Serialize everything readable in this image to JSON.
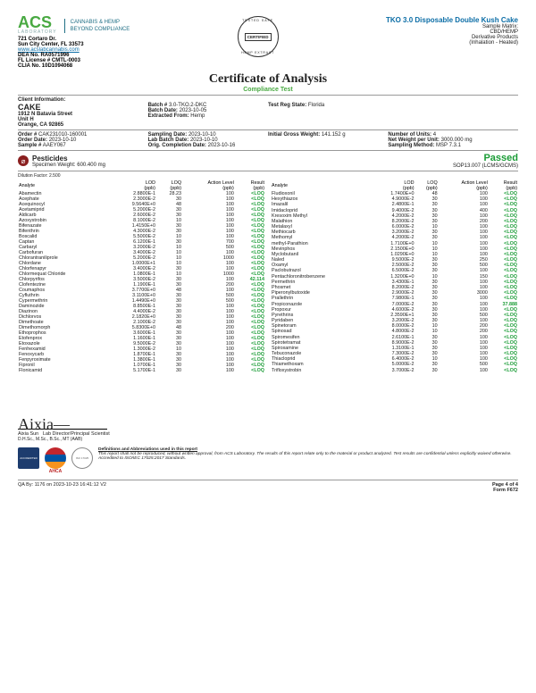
{
  "lab": {
    "name_main": "ACS",
    "name_sub": "LABORATORY",
    "tagline1": "CANNABIS & HEMP",
    "tagline2": "BEYOND COMPLIANCE",
    "addr1": "721 Cortaro Dr.",
    "addr2": "Sun City Center, FL 33573",
    "url": "www.acslabcannabis.com",
    "dea": "DEA No. RA0571996",
    "fl_lic": "FL License # CMTL-0003",
    "clia": "CLIA No. 10D1094068"
  },
  "badge": {
    "label": "CERTIFIED"
  },
  "product": {
    "title": "TKO 3.0 Disposable Double Kush Cake",
    "matrix_lbl": "Sample Matrix:",
    "matrix": "CBD/HEMP",
    "deriv1": "Derivative Products",
    "deriv2": "(Inhalation - Heated)"
  },
  "coa": {
    "title": "Certificate of Analysis",
    "sub": "Compliance Test"
  },
  "client": {
    "heading": "Client Information:",
    "name": "CAKE",
    "addr1": "1912 N Batavia Street",
    "addr2": "Unit H",
    "addr3": "Orange, CA 92865",
    "batch_no_lbl": "Batch #",
    "batch_no": "3.0-TKO.2-DKC",
    "batch_date_lbl": "Batch Date:",
    "batch_date": "2023-10-05",
    "extracted_lbl": "Extracted From:",
    "extracted": "Hemp",
    "testreg_lbl": "Test Reg State:",
    "testreg": "Florida",
    "order_no_lbl": "Order #",
    "order_no": "CAK231010-160001",
    "order_date_lbl": "Order Date:",
    "order_date": "2023-10-10",
    "sample_no_lbl": "Sample #",
    "sample_no": "AAEY067",
    "samp_date_lbl": "Sampling Date:",
    "samp_date": "2023-10-10",
    "lab_batch_lbl": "Lab Batch Date:",
    "lab_batch": "2023-10-10",
    "comp_date_lbl": "Orig. Completion Date:",
    "comp_date": "2023-10-16",
    "gross_lbl": "Initial Gross Weight:",
    "gross": "141.152 g",
    "units_lbl": "Number of Units:",
    "units": "4",
    "netwt_lbl": "Net Weight per Unit:",
    "netwt": "3000.000 mg",
    "method_lbl": "Sampling Method:",
    "method": "MSP 7.3.1"
  },
  "section": {
    "title": "Pesticides",
    "spec": "Specimen Weight: 600.400 mg",
    "result": "Passed",
    "sop": "SOP13.007 (LCMS/GCMS)",
    "dilution": "Dilution Factor: 2.500"
  },
  "headers": {
    "analyte": "Analyte",
    "lod": "LOD",
    "lod_u": "(ppb)",
    "loq": "LOQ",
    "loq_u": "(ppb)",
    "al": "Action Level",
    "al_u": "(ppb)",
    "res": "Result",
    "res_u": "(ppb)"
  },
  "left_rows": [
    [
      "Abamectin",
      "2.8800E-1",
      "28.23",
      "100",
      "<LOQ"
    ],
    [
      "Acephate",
      "2.3000E-2",
      "30",
      "100",
      "<LOQ"
    ],
    [
      "Acequinocyl",
      "9.5640E+0",
      "48",
      "100",
      "<LOQ"
    ],
    [
      "Acetamiprid",
      "5.2000E-2",
      "30",
      "100",
      "<LOQ"
    ],
    [
      "Aldicarb",
      "2.6000E-2",
      "30",
      "100",
      "<LOQ"
    ],
    [
      "Azoxystrobin",
      "8.1000E-2",
      "10",
      "100",
      "<LOQ"
    ],
    [
      "Bifenazate",
      "1.4150E+0",
      "30",
      "100",
      "<LOQ"
    ],
    [
      "Bifenthrin",
      "4.3000E-2",
      "30",
      "100",
      "<LOQ"
    ],
    [
      "Boscalid",
      "5.5000E-2",
      "10",
      "100",
      "<LOQ"
    ],
    [
      "Captan",
      "6.1200E-1",
      "30",
      "700",
      "<LOQ"
    ],
    [
      "Carbaryl",
      "3.2000E-2",
      "10",
      "500",
      "<LOQ"
    ],
    [
      "Carbofuran",
      "3.4000E-2",
      "10",
      "100",
      "<LOQ"
    ],
    [
      "Chlorantraniliprole",
      "5.2000E-2",
      "10",
      "1000",
      "<LOQ"
    ],
    [
      "Chlordane",
      "1.0000E+1",
      "10",
      "100",
      "<LOQ"
    ],
    [
      "Chlorfenapyr",
      "3.4000E-2",
      "30",
      "100",
      "<LOQ"
    ],
    [
      "Chlormequat Chloride",
      "1.0800E-1",
      "10",
      "1000",
      "<LOQ"
    ],
    [
      "Chlorpyrifos",
      "3.5000E-2",
      "30",
      "100",
      "42.114"
    ],
    [
      "Clofentezine",
      "1.1900E-1",
      "30",
      "200",
      "<LOQ"
    ],
    [
      "Coumaphos",
      "3.7700E+0",
      "48",
      "100",
      "<LOQ"
    ],
    [
      "Cyfluthrin",
      "3.1100E+0",
      "30",
      "500",
      "<LOQ"
    ],
    [
      "Cypermethrin",
      "1.4490E+0",
      "30",
      "500",
      "<LOQ"
    ],
    [
      "Daminozide",
      "8.8500E-1",
      "30",
      "100",
      "<LOQ"
    ],
    [
      "Diazinon",
      "4.4000E-2",
      "30",
      "100",
      "<LOQ"
    ],
    [
      "Dichlorvos",
      "2.1820E+0",
      "30",
      "100",
      "<LOQ"
    ],
    [
      "Dimethoate",
      "2.1000E-2",
      "30",
      "100",
      "<LOQ"
    ],
    [
      "Dimethomorph",
      "5.8300E+0",
      "48",
      "200",
      "<LOQ"
    ],
    [
      "Ethoprophos",
      "3.6000E-1",
      "30",
      "100",
      "<LOQ"
    ],
    [
      "Etofenprox",
      "1.1600E-1",
      "30",
      "100",
      "<LOQ"
    ],
    [
      "Etoxazole",
      "9.5000E-2",
      "30",
      "100",
      "<LOQ"
    ],
    [
      "Fenhexamid",
      "1.3000E-2",
      "10",
      "100",
      "<LOQ"
    ],
    [
      "Fenoxycarb",
      "1.8700E-1",
      "30",
      "100",
      "<LOQ"
    ],
    [
      "Fenpyroximate",
      "1.3800E-1",
      "30",
      "100",
      "<LOQ"
    ],
    [
      "Fipronil",
      "1.0700E-1",
      "30",
      "100",
      "<LOQ"
    ],
    [
      "Flonicamid",
      "5.1700E-1",
      "30",
      "100",
      "<LOQ"
    ]
  ],
  "right_rows": [
    [
      "Fludioxonil",
      "1.7400E+0",
      "48",
      "100",
      "<LOQ"
    ],
    [
      "Hexythiazox",
      "4.9000E-2",
      "30",
      "100",
      "<LOQ"
    ],
    [
      "Imazalil",
      "2.4800E-1",
      "30",
      "100",
      "<LOQ"
    ],
    [
      "Imidacloprid",
      "9.4000E-2",
      "30",
      "400",
      "<LOQ"
    ],
    [
      "Kresoxim Methyl",
      "4.2000E-2",
      "30",
      "100",
      "<LOQ"
    ],
    [
      "Malathion",
      "8.2000E-2",
      "30",
      "200",
      "<LOQ"
    ],
    [
      "Metalaxyl",
      "6.0000E-2",
      "10",
      "100",
      "<LOQ"
    ],
    [
      "Methiocarb",
      "3.2000E-2",
      "30",
      "100",
      "<LOQ"
    ],
    [
      "Methomyl",
      "4.2000E-2",
      "30",
      "100",
      "<LOQ"
    ],
    [
      "methyl-Parathion",
      "1.7100E+0",
      "10",
      "100",
      "<LOQ"
    ],
    [
      "Mevinphos",
      "2.1500E+0",
      "10",
      "100",
      "<LOQ"
    ],
    [
      "Myclobutanil",
      "1.0290E+0",
      "10",
      "100",
      "<LOQ"
    ],
    [
      "Naled",
      "9.5000E-2",
      "30",
      "250",
      "<LOQ"
    ],
    [
      "Oxamyl",
      "2.5000E-2",
      "30",
      "500",
      "<LOQ"
    ],
    [
      "Paclobutrazol",
      "6.5000E-2",
      "30",
      "100",
      "<LOQ"
    ],
    [
      "Pentachloronitrobenzene",
      "1.3200E+0",
      "10",
      "150",
      "<LOQ"
    ],
    [
      "Permethrin",
      "3.4300E-1",
      "30",
      "100",
      "<LOQ"
    ],
    [
      "Phosmet",
      "8.2000E-2",
      "30",
      "100",
      "<LOQ"
    ],
    [
      "Piperonylbutoxide",
      "2.9000E-2",
      "30",
      "3000",
      "<LOQ"
    ],
    [
      "Prallethrin",
      "7.9800E-1",
      "30",
      "100",
      "<LOQ"
    ],
    [
      "Propiconazole",
      "7.0000E-2",
      "30",
      "100",
      "37.888"
    ],
    [
      "Propoxur",
      "4.6000E-2",
      "30",
      "100",
      "<LOQ"
    ],
    [
      "Pyrethrins",
      "2.3590E+1",
      "30",
      "500",
      "<LOQ"
    ],
    [
      "Pyridaben",
      "3.2000E-2",
      "30",
      "100",
      "<LOQ"
    ],
    [
      "Spinetoram",
      "8.0000E-2",
      "10",
      "200",
      "<LOQ"
    ],
    [
      "Spinosad",
      "4.8000E-2",
      "10",
      "200",
      "<LOQ"
    ],
    [
      "Spiromesifen",
      "2.6100E-1",
      "30",
      "100",
      "<LOQ"
    ],
    [
      "Spirotetramat",
      "8.9000E-2",
      "30",
      "100",
      "<LOQ"
    ],
    [
      "Spiroxamine",
      "1.3100E-1",
      "30",
      "100",
      "<LOQ"
    ],
    [
      "Tebuconazole",
      "7.3000E-2",
      "30",
      "100",
      "<LOQ"
    ],
    [
      "Thiacloprid",
      "6.4000E-2",
      "10",
      "100",
      "<LOQ"
    ],
    [
      "Thiamethoxam",
      "5.0000E-2",
      "30",
      "500",
      "<LOQ"
    ],
    [
      "Trifloxystrobin",
      "3.7000E-2",
      "30",
      "100",
      "<LOQ"
    ]
  ],
  "signature": {
    "name": "Aixia Sun",
    "role": "Lab Director/Principal Scientist",
    "creds": "D.H.Sc., M.Sc., B.Sc., MT (AAB)"
  },
  "disclaimer": {
    "u": "Definitions and Abbreviations used in this report",
    "text": "This report shall not be reproduced, without written approval, from ACS Laboratory. The results of this report relate only to the material or product analyzed. Test results are confidential unless explicitly waived otherwise. Accredited to ISO/IEC 17025:2017 Standards."
  },
  "qa": {
    "left": "QA By: 1176 on 2023-10-23 16:41:12 V2",
    "right1": "Page 4 of 4",
    "right2": "Form F672"
  },
  "badges": {
    "acc": "ACCREDITED",
    "ahca": "AHCA",
    "iso": "ISO 17025"
  }
}
